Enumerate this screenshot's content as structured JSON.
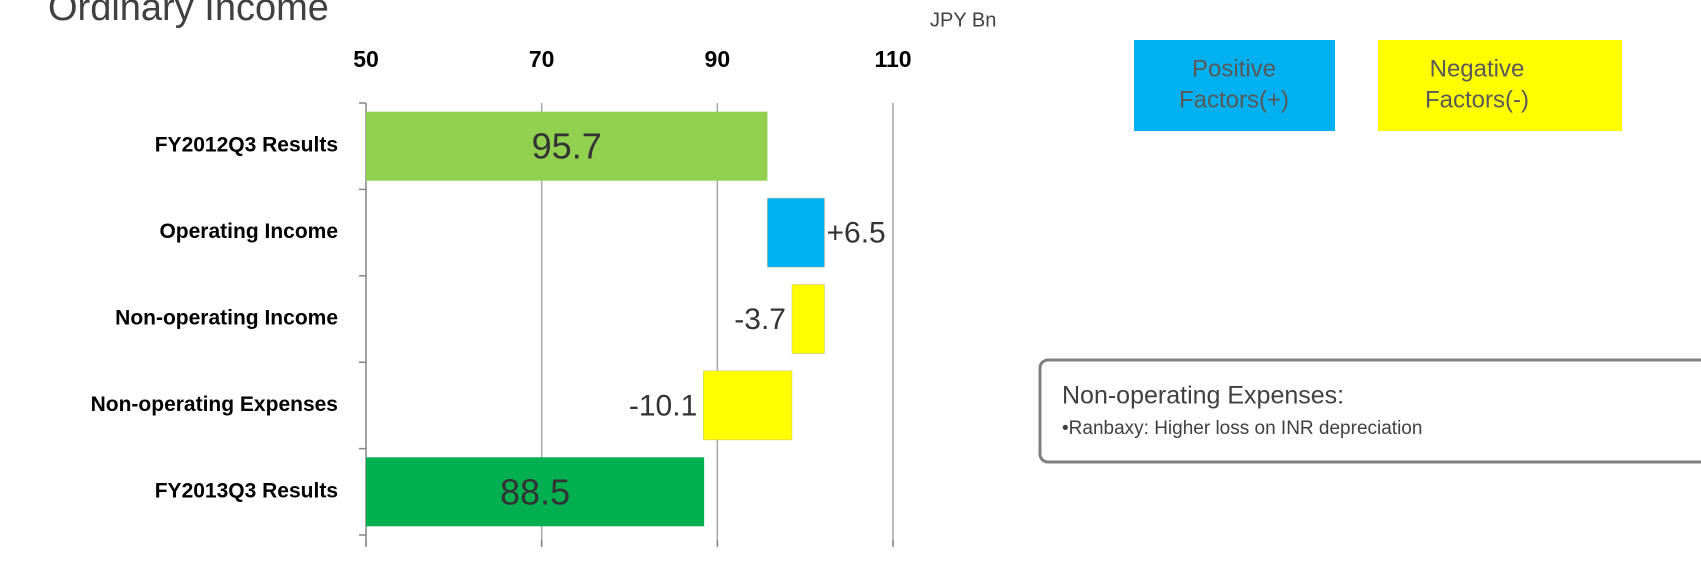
{
  "chart_data": {
    "type": "waterfall",
    "title": "Ordinary Income",
    "unit_label": "JPY Bn",
    "categories": [
      "FY2012Q3 Results",
      "Operating Income",
      "Non-operating Income",
      "Non-operating Expenses",
      "FY2013Q3 Results"
    ],
    "values": [
      95.7,
      6.5,
      -3.7,
      -10.1,
      88.5
    ],
    "value_labels": [
      "95.7",
      "+6.5",
      "-3.7",
      "-10.1",
      "88.5"
    ],
    "measures": [
      "absolute",
      "relative",
      "relative",
      "relative",
      "absolute"
    ],
    "colors": [
      "#92d050",
      "#00b0f0",
      "#ffff00",
      "#ffff00",
      "#00b050"
    ],
    "xlim": [
      50,
      110
    ],
    "xticks": [
      50,
      70,
      90,
      110
    ],
    "grid": true,
    "legend": [
      {
        "lines": [
          "Positive",
          "Factors(+)"
        ],
        "color": "#00b0f0"
      },
      {
        "lines": [
          "Negative",
          "Factors(-)"
        ],
        "color": "#ffff00"
      }
    ],
    "annotation": {
      "title": "Non-operating Expenses:",
      "text": "•Ranbaxy: Higher loss on INR depreciation"
    }
  }
}
